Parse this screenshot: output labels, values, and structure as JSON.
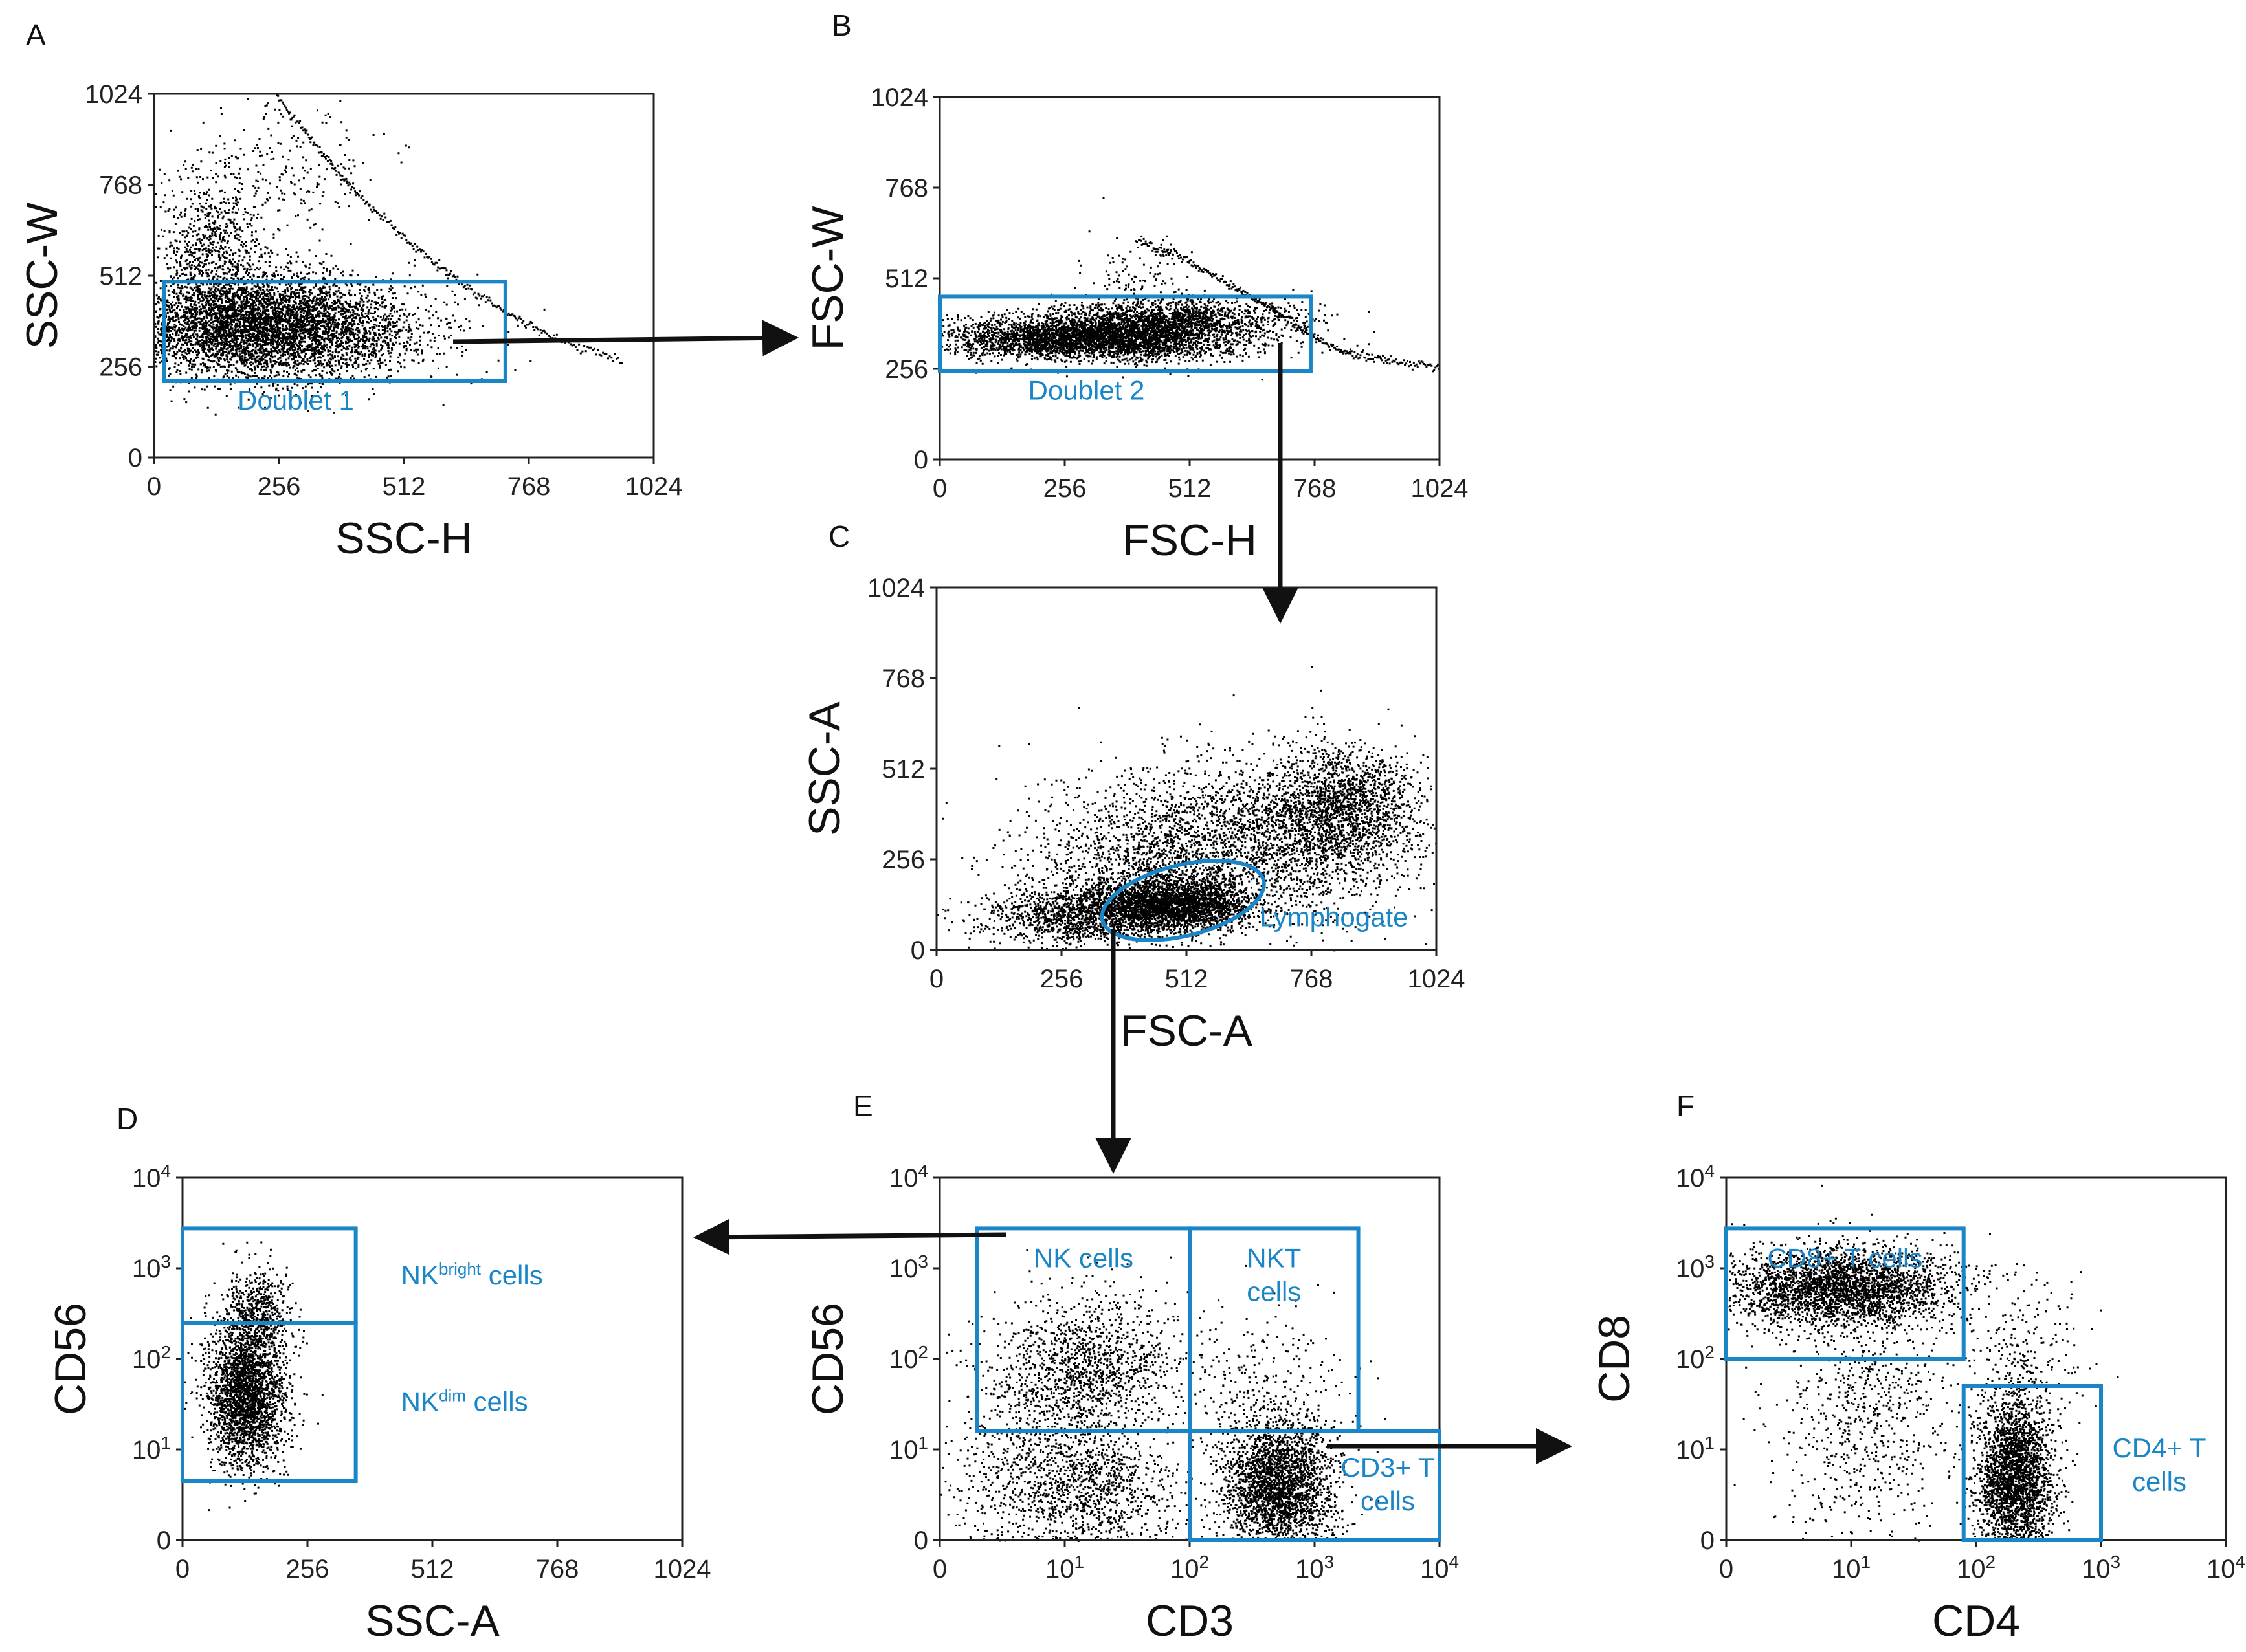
{
  "colors": {
    "gate": "#1a86c8",
    "dots": "#000000",
    "text": "#111111"
  },
  "arrow_marker": "arrow-head-icon",
  "chart_data": [
    {
      "id": "A",
      "type": "scatter",
      "panel_letter": "A",
      "xlabel": "SSC-H",
      "ylabel": "SSC-W",
      "x_ticks": [
        "0",
        "256",
        "512",
        "768",
        "1024"
      ],
      "y_ticks": [
        "0",
        "256",
        "512",
        "768",
        "1024"
      ],
      "xlim": [
        0,
        1024
      ],
      "ylim": [
        0,
        1024
      ],
      "gates": [
        {
          "label": "Doublet 1",
          "x": [
            20,
            720
          ],
          "y": [
            215,
            495
          ]
        }
      ],
      "clusters": [
        {
          "cx": 230,
          "cy": 370,
          "sx": 150,
          "sy": 70,
          "n": 5200
        },
        {
          "cx": 120,
          "cy": 560,
          "sx": 60,
          "sy": 120,
          "n": 900
        },
        {
          "cx": 260,
          "cy": 800,
          "sx": 90,
          "sy": 120,
          "n": 250
        }
      ],
      "curve": {
        "x": [
          250,
          340,
          420,
          520,
          620,
          720,
          820,
          960
        ],
        "y": [
          1024,
          860,
          740,
          610,
          500,
          410,
          340,
          270
        ]
      }
    },
    {
      "id": "B",
      "type": "scatter",
      "panel_letter": "B",
      "xlabel": "FSC-H",
      "ylabel": "FSC-W",
      "x_ticks": [
        "0",
        "256",
        "512",
        "768",
        "1024"
      ],
      "y_ticks": [
        "0",
        "256",
        "512",
        "768",
        "1024"
      ],
      "xlim": [
        0,
        1024
      ],
      "ylim": [
        0,
        1024
      ],
      "gates": [
        {
          "label": "Doublet 2",
          "x": [
            0,
            760
          ],
          "y": [
            250,
            460
          ]
        }
      ],
      "clusters": [
        {
          "cx": 320,
          "cy": 345,
          "sx": 150,
          "sy": 30,
          "n": 4200
        },
        {
          "cx": 480,
          "cy": 405,
          "sx": 120,
          "sy": 25,
          "n": 1200
        },
        {
          "cx": 410,
          "cy": 520,
          "sx": 60,
          "sy": 60,
          "n": 120
        }
      ],
      "curve": {
        "x": [
          400,
          480,
          560,
          640,
          700,
          760,
          840,
          920,
          1024
        ],
        "y": [
          620,
          580,
          520,
          460,
          410,
          350,
          300,
          280,
          260
        ]
      }
    },
    {
      "id": "C",
      "type": "scatter",
      "panel_letter": "C",
      "xlabel": "FSC-A",
      "ylabel": "SSC-A",
      "x_ticks": [
        "0",
        "256",
        "512",
        "768",
        "1024"
      ],
      "y_ticks": [
        "0",
        "256",
        "512",
        "768",
        "1024"
      ],
      "xlim": [
        0,
        1024
      ],
      "ylim": [
        0,
        1024
      ],
      "ellipse_gates": [
        {
          "label": "Lymphogate",
          "cx": 505,
          "cy": 140,
          "rx": 170,
          "ry": 100
        }
      ],
      "clusters": [
        {
          "cx": 480,
          "cy": 130,
          "sx": 80,
          "sy": 35,
          "n": 2600
        },
        {
          "cx": 300,
          "cy": 100,
          "sx": 100,
          "sy": 40,
          "n": 1400
        },
        {
          "cx": 820,
          "cy": 400,
          "sx": 80,
          "sy": 90,
          "n": 1800
        },
        {
          "cx": 620,
          "cy": 300,
          "sx": 180,
          "sy": 120,
          "n": 2200
        },
        {
          "cx": 450,
          "cy": 250,
          "sx": 150,
          "sy": 90,
          "n": 900
        }
      ]
    },
    {
      "id": "D",
      "type": "scatter",
      "panel_letter": "D",
      "xlabel": "SSC-A",
      "ylabel": "CD56",
      "x_ticks": [
        "0",
        "256",
        "512",
        "768",
        "1024"
      ],
      "y_ticks": [
        "0",
        "10",
        "10",
        "10",
        "10"
      ],
      "y_tick_exponents": [
        "",
        "1",
        "2",
        "3",
        "4"
      ],
      "xlim": [
        0,
        1024
      ],
      "ylim": [
        0,
        4
      ],
      "gates": [
        {
          "label": "NK",
          "label_sup": "bright",
          "label_tail": " cells",
          "x": [
            0,
            355
          ],
          "y": [
            2.4,
            3.44
          ]
        },
        {
          "label": "NK",
          "label_sup": "dim",
          "label_tail": " cells",
          "x": [
            0,
            355
          ],
          "y": [
            0.65,
            2.4
          ]
        }
      ],
      "clusters": [
        {
          "cx": 130,
          "cy": 1.6,
          "sx": 40,
          "sy": 0.4,
          "n": 2600
        },
        {
          "cx": 150,
          "cy": 2.5,
          "sx": 35,
          "sy": 0.25,
          "n": 600
        }
      ]
    },
    {
      "id": "E",
      "type": "scatter",
      "panel_letter": "E",
      "xlabel": "CD3",
      "ylabel": "CD56",
      "x_ticks": [
        "0",
        "10",
        "10",
        "10",
        "10"
      ],
      "x_tick_exponents": [
        "",
        "1",
        "2",
        "3",
        "4"
      ],
      "y_ticks": [
        "0",
        "10",
        "10",
        "10",
        "10"
      ],
      "y_tick_exponents": [
        "",
        "1",
        "2",
        "3",
        "4"
      ],
      "xlim": [
        0,
        4
      ],
      "ylim": [
        0,
        4
      ],
      "gates": [
        {
          "label": "NK cells",
          "x": [
            0.3,
            2.0
          ],
          "y": [
            1.2,
            3.44
          ]
        },
        {
          "label": "NKT cells",
          "x": [
            2.0,
            3.35
          ],
          "y": [
            1.2,
            3.44
          ]
        },
        {
          "label": "CD3+ T cells",
          "x": [
            2.0,
            4.0
          ],
          "y": [
            0,
            1.2
          ]
        }
      ],
      "clusters": [
        {
          "cx": 2.7,
          "cy": 0.6,
          "sx": 0.22,
          "sy": 0.35,
          "n": 2600
        },
        {
          "cx": 1.2,
          "cy": 1.9,
          "sx": 0.35,
          "sy": 0.4,
          "n": 1300
        },
        {
          "cx": 1.2,
          "cy": 0.6,
          "sx": 0.35,
          "sy": 0.35,
          "n": 1000
        },
        {
          "cx": 0.6,
          "cy": 0.8,
          "sx": 0.3,
          "sy": 0.7,
          "n": 500
        },
        {
          "cx": 2.6,
          "cy": 1.6,
          "sx": 0.35,
          "sy": 0.5,
          "n": 350
        }
      ]
    },
    {
      "id": "F",
      "type": "scatter",
      "panel_letter": "F",
      "xlabel": "CD4",
      "ylabel": "CD8",
      "x_ticks": [
        "0",
        "10",
        "10",
        "10",
        "10"
      ],
      "x_tick_exponents": [
        "",
        "1",
        "2",
        "3",
        "4"
      ],
      "y_ticks": [
        "0",
        "10",
        "10",
        "10",
        "10"
      ],
      "y_tick_exponents": [
        "",
        "1",
        "2",
        "3",
        "4"
      ],
      "xlim": [
        0,
        4
      ],
      "ylim": [
        0,
        4
      ],
      "gates": [
        {
          "label": "CD8+ T cells",
          "x": [
            0,
            1.9
          ],
          "y": [
            2.0,
            3.44
          ]
        },
        {
          "label": "CD4+ T cells",
          "x": [
            1.9,
            3.0
          ],
          "y": [
            0,
            1.7
          ]
        }
      ],
      "clusters": [
        {
          "cx": 0.9,
          "cy": 2.8,
          "sx": 0.45,
          "sy": 0.22,
          "n": 3000
        },
        {
          "cx": 2.3,
          "cy": 0.7,
          "sx": 0.15,
          "sy": 0.45,
          "n": 2600
        },
        {
          "cx": 1.1,
          "cy": 1.3,
          "sx": 0.35,
          "sy": 0.7,
          "n": 700
        },
        {
          "cx": 2.4,
          "cy": 2.0,
          "sx": 0.25,
          "sy": 0.5,
          "n": 250
        }
      ]
    }
  ]
}
